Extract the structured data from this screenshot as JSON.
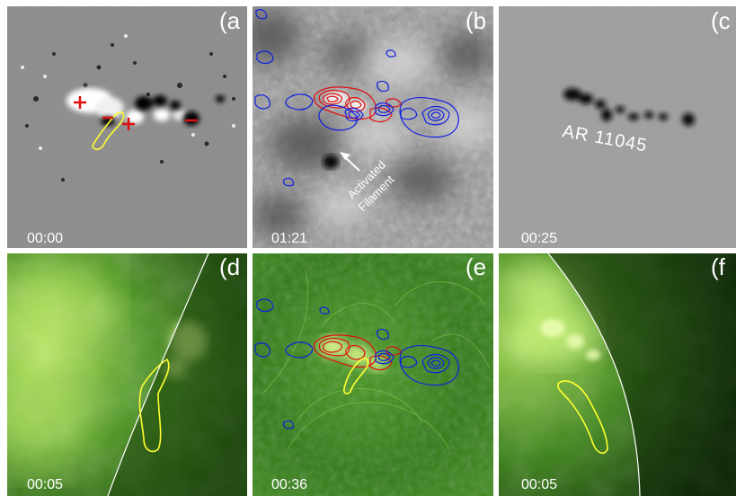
{
  "panels": [
    {
      "letter": "(a",
      "time": "00:00",
      "kind": "magnetogram"
    },
    {
      "letter": "(b",
      "time": "01:21",
      "kind": "h-alpha",
      "annotation": [
        "Activated",
        "Filament"
      ]
    },
    {
      "letter": "(c",
      "time": "00:25",
      "kind": "continuum",
      "annotation": [
        "AR 11045"
      ]
    },
    {
      "letter": "(d",
      "time": "00:05",
      "kind": "euv-limb"
    },
    {
      "letter": "(e",
      "time": "00:36",
      "kind": "euv-disk"
    },
    {
      "letter": "(f",
      "time": "00:05",
      "kind": "euv-limb"
    }
  ],
  "colors": {
    "positive_contour": "#e01010",
    "negative_contour": "#1020e0",
    "filament_outline": "#ffff30",
    "polarity_marker": "#e01010",
    "label_text": "#ffffff",
    "limb_line": "#ffffff",
    "euv_green": "#2f7a16"
  },
  "markers": {
    "positive": "+",
    "negative": "−"
  }
}
